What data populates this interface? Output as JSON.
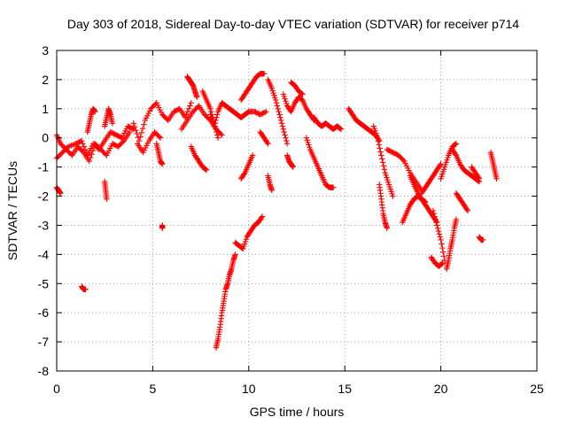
{
  "chart_data": {
    "type": "scatter",
    "title": "Day 303 of 2018, Sidereal Day-to-day VTEC variation (SDTVAR) for receiver p714",
    "xlabel": "GPS time / hours",
    "ylabel": "SDTVAR / TECUs",
    "xlim": [
      0,
      25
    ],
    "ylim": [
      -8,
      3
    ],
    "xticks": [
      0,
      5,
      10,
      15,
      20,
      25
    ],
    "yticks": [
      -8,
      -7,
      -6,
      -5,
      -4,
      -3,
      -2,
      -1,
      0,
      1,
      2,
      3
    ],
    "grid": true,
    "marker": "plus",
    "color": "#ff0000",
    "segments": [
      {
        "x": [
          0.0,
          0.3,
          0.6,
          1.0,
          1.3,
          1.6,
          1.9,
          2.2,
          2.5,
          2.8,
          3.1,
          3.4,
          3.7,
          4.0
        ],
        "y": [
          -0.7,
          -0.5,
          -0.3,
          -0.2,
          -0.1,
          -0.6,
          -0.2,
          -0.4,
          -0.1,
          0.2,
          0.1,
          0.0,
          0.4,
          0.3
        ]
      },
      {
        "x": [
          0.0,
          0.2,
          0.5,
          0.8,
          1.1,
          1.4,
          1.7,
          2.0,
          2.3,
          2.6,
          2.9,
          3.2,
          3.5,
          3.8
        ],
        "y": [
          0.1,
          -0.2,
          -0.4,
          -0.6,
          -0.3,
          -0.5,
          -0.8,
          -0.2,
          -0.4,
          -0.6,
          -0.2,
          -0.3,
          -0.1,
          0.2
        ]
      },
      {
        "x": [
          1.6,
          1.7,
          1.8,
          1.9,
          2.0
        ],
        "y": [
          0.2,
          0.5,
          0.8,
          1.0,
          0.9
        ]
      },
      {
        "x": [
          2.5,
          2.6,
          2.7,
          2.8,
          2.9
        ],
        "y": [
          0.4,
          0.7,
          1.0,
          0.8,
          0.5
        ]
      },
      {
        "x": [
          0.0,
          0.1,
          0.2
        ],
        "y": [
          -1.7,
          -1.8,
          -1.9
        ]
      },
      {
        "x": [
          1.3,
          1.4,
          1.5
        ],
        "y": [
          -5.1,
          -5.2,
          -5.2
        ]
      },
      {
        "x": [
          2.5,
          2.55,
          2.6
        ],
        "y": [
          -1.5,
          -1.8,
          -2.1
        ]
      },
      {
        "x": [
          4.0,
          4.3,
          4.6,
          4.9,
          5.2,
          5.5,
          5.8,
          6.1,
          6.4,
          6.7,
          7.0
        ],
        "y": [
          0.5,
          -0.1,
          0.6,
          1.0,
          1.2,
          0.8,
          0.6,
          0.9,
          1.0,
          0.7,
          1.2
        ]
      },
      {
        "x": [
          4.2,
          4.5,
          4.8,
          5.1,
          5.4
        ],
        "y": [
          -0.2,
          -0.5,
          -0.1,
          0.2,
          0.0
        ]
      },
      {
        "x": [
          5.2,
          5.3,
          5.4,
          5.5
        ],
        "y": [
          -0.2,
          -0.5,
          -0.8,
          -0.9
        ]
      },
      {
        "x": [
          5.5,
          5.5
        ],
        "y": [
          -3.0,
          -3.1
        ]
      },
      {
        "x": [
          6.5,
          6.8,
          7.1,
          7.4,
          7.7,
          8.0,
          8.3,
          8.6
        ],
        "y": [
          0.3,
          0.6,
          0.9,
          1.1,
          0.8,
          0.6,
          0.3,
          0.1
        ]
      },
      {
        "x": [
          6.8,
          6.9,
          7.0,
          7.1,
          7.2,
          7.3
        ],
        "y": [
          2.1,
          2.0,
          1.9,
          1.8,
          1.6,
          1.4
        ]
      },
      {
        "x": [
          7.0,
          7.2,
          7.4,
          7.6,
          7.8
        ],
        "y": [
          -0.3,
          -0.6,
          -0.8,
          -1.0,
          -1.1
        ]
      },
      {
        "x": [
          7.6,
          7.8,
          8.0,
          8.2,
          8.4
        ],
        "y": [
          1.6,
          1.3,
          1.0,
          0.5,
          0.0
        ]
      },
      {
        "x": [
          8.0,
          8.2,
          8.4,
          8.6,
          8.8,
          9.0,
          9.2,
          9.4,
          9.6,
          9.8,
          10.0,
          10.3,
          10.6,
          10.9
        ],
        "y": [
          0.8,
          0.4,
          0.9,
          1.2,
          1.1,
          1.0,
          0.9,
          0.8,
          0.7,
          0.8,
          0.9,
          0.9,
          0.8,
          0.9
        ]
      },
      {
        "x": [
          8.3,
          8.4,
          8.5,
          8.6,
          8.7,
          8.8,
          8.9,
          9.0,
          9.1,
          9.2,
          9.3
        ],
        "y": [
          -7.2,
          -6.9,
          -6.5,
          -6.0,
          -5.6,
          -5.2,
          -5.0,
          -4.7,
          -4.5,
          -4.2,
          -4.0
        ]
      },
      {
        "x": [
          9.3,
          9.5,
          9.7,
          9.9,
          10.1,
          10.3,
          10.5,
          10.7
        ],
        "y": [
          -3.6,
          -3.7,
          -3.8,
          -3.4,
          -3.2,
          -3.0,
          -2.9,
          -2.7
        ]
      },
      {
        "x": [
          9.6,
          9.8,
          10.0,
          10.2,
          10.4,
          10.6,
          10.8
        ],
        "y": [
          1.3,
          1.5,
          1.7,
          1.9,
          2.1,
          2.2,
          2.2
        ]
      },
      {
        "x": [
          9.6,
          9.8,
          10.0,
          10.2
        ],
        "y": [
          -1.4,
          -1.2,
          -0.9,
          -0.6
        ]
      },
      {
        "x": [
          10.6,
          10.8,
          11.0
        ],
        "y": [
          0.2,
          0.0,
          -0.2
        ]
      },
      {
        "x": [
          11.0,
          11.2,
          11.4,
          11.6,
          11.8,
          12.0
        ],
        "y": [
          2.0,
          1.7,
          1.3,
          0.8,
          0.3,
          -0.2
        ]
      },
      {
        "x": [
          11.0,
          11.1,
          11.2
        ],
        "y": [
          -1.3,
          -1.6,
          -1.8
        ]
      },
      {
        "x": [
          11.8,
          12.0,
          12.2,
          12.4,
          12.6,
          12.8,
          13.0,
          13.2,
          13.4
        ],
        "y": [
          1.5,
          1.1,
          0.9,
          1.2,
          1.4,
          1.3,
          1.0,
          0.8,
          0.6
        ]
      },
      {
        "x": [
          12.0,
          12.1,
          12.2,
          12.3
        ],
        "y": [
          -0.6,
          -0.8,
          -0.9,
          -1.0
        ]
      },
      {
        "x": [
          12.2,
          12.4,
          12.6,
          12.8
        ],
        "y": [
          1.9,
          1.8,
          1.6,
          1.5
        ]
      },
      {
        "x": [
          13.0,
          13.2,
          13.4,
          13.6,
          13.8,
          14.0,
          14.2,
          14.4
        ],
        "y": [
          0.0,
          -0.4,
          -0.7,
          -1.0,
          -1.3,
          -1.6,
          -1.7,
          -1.7
        ]
      },
      {
        "x": [
          13.4,
          13.6,
          13.8,
          14.0,
          14.2,
          14.4,
          14.6,
          14.8
        ],
        "y": [
          0.7,
          0.5,
          0.4,
          0.5,
          0.4,
          0.3,
          0.4,
          0.3
        ]
      },
      {
        "x": [
          15.2,
          15.4,
          15.6,
          15.8,
          16.0,
          16.2,
          16.4,
          16.6,
          16.8
        ],
        "y": [
          1.0,
          0.8,
          0.6,
          0.5,
          0.4,
          0.3,
          0.2,
          0.1,
          -0.1
        ]
      },
      {
        "x": [
          16.5,
          16.7,
          16.9,
          17.1,
          17.3,
          17.5
        ],
        "y": [
          0.4,
          0.0,
          -0.6,
          -1.2,
          -1.6,
          -2.0
        ]
      },
      {
        "x": [
          16.8,
          16.9,
          17.0,
          17.1,
          17.2
        ],
        "y": [
          -1.6,
          -2.1,
          -2.6,
          -2.9,
          -3.1
        ]
      },
      {
        "x": [
          17.2,
          17.5,
          17.8,
          18.1,
          18.4,
          18.7,
          19.0
        ],
        "y": [
          -0.4,
          -0.5,
          -0.6,
          -0.8,
          -1.2,
          -1.5,
          -1.8
        ]
      },
      {
        "x": [
          18.0,
          18.2,
          18.4,
          18.6,
          18.8,
          19.0,
          19.2
        ],
        "y": [
          -2.9,
          -2.6,
          -2.3,
          -2.1,
          -2.0,
          -2.1,
          -2.2
        ]
      },
      {
        "x": [
          18.4,
          18.6,
          18.8,
          19.0,
          19.2,
          19.4,
          19.6,
          19.8
        ],
        "y": [
          -1.3,
          -1.6,
          -1.9,
          -2.1,
          -2.3,
          -2.5,
          -2.7,
          -2.9
        ]
      },
      {
        "x": [
          19.0,
          19.2,
          19.4,
          19.6,
          19.8,
          20.0
        ],
        "y": [
          -1.9,
          -1.7,
          -1.5,
          -1.3,
          -1.1,
          -0.9
        ]
      },
      {
        "x": [
          19.6,
          19.8,
          20.0,
          20.2
        ],
        "y": [
          -2.5,
          -3.0,
          -3.5,
          -4.2
        ]
      },
      {
        "x": [
          19.5,
          19.7,
          19.9,
          20.1
        ],
        "y": [
          -4.1,
          -4.3,
          -4.4,
          -4.3
        ]
      },
      {
        "x": [
          20.0,
          20.2,
          20.4,
          20.6,
          20.8
        ],
        "y": [
          -1.4,
          -1.0,
          -0.6,
          -0.3,
          -0.2
        ]
      },
      {
        "x": [
          20.3,
          20.4,
          20.5,
          20.6,
          20.7,
          20.8
        ],
        "y": [
          -4.5,
          -4.2,
          -3.8,
          -3.5,
          -3.1,
          -2.8
        ]
      },
      {
        "x": [
          20.6,
          20.8,
          21.0,
          21.2,
          21.4,
          21.6,
          21.8,
          22.0
        ],
        "y": [
          -0.4,
          -0.6,
          -0.9,
          -1.1,
          -1.2,
          -1.3,
          -1.4,
          -1.5
        ]
      },
      {
        "x": [
          20.8,
          21.0,
          21.2,
          21.4
        ],
        "y": [
          -1.9,
          -2.1,
          -2.3,
          -2.5
        ]
      },
      {
        "x": [
          21.6,
          21.8,
          22.0
        ],
        "y": [
          -1.0,
          -1.2,
          -1.4
        ]
      },
      {
        "x": [
          22.0,
          22.1,
          22.2
        ],
        "y": [
          -3.4,
          -3.5,
          -3.5
        ]
      },
      {
        "x": [
          22.6,
          22.7,
          22.8,
          22.9
        ],
        "y": [
          -0.5,
          -0.8,
          -1.1,
          -1.4
        ]
      }
    ]
  }
}
